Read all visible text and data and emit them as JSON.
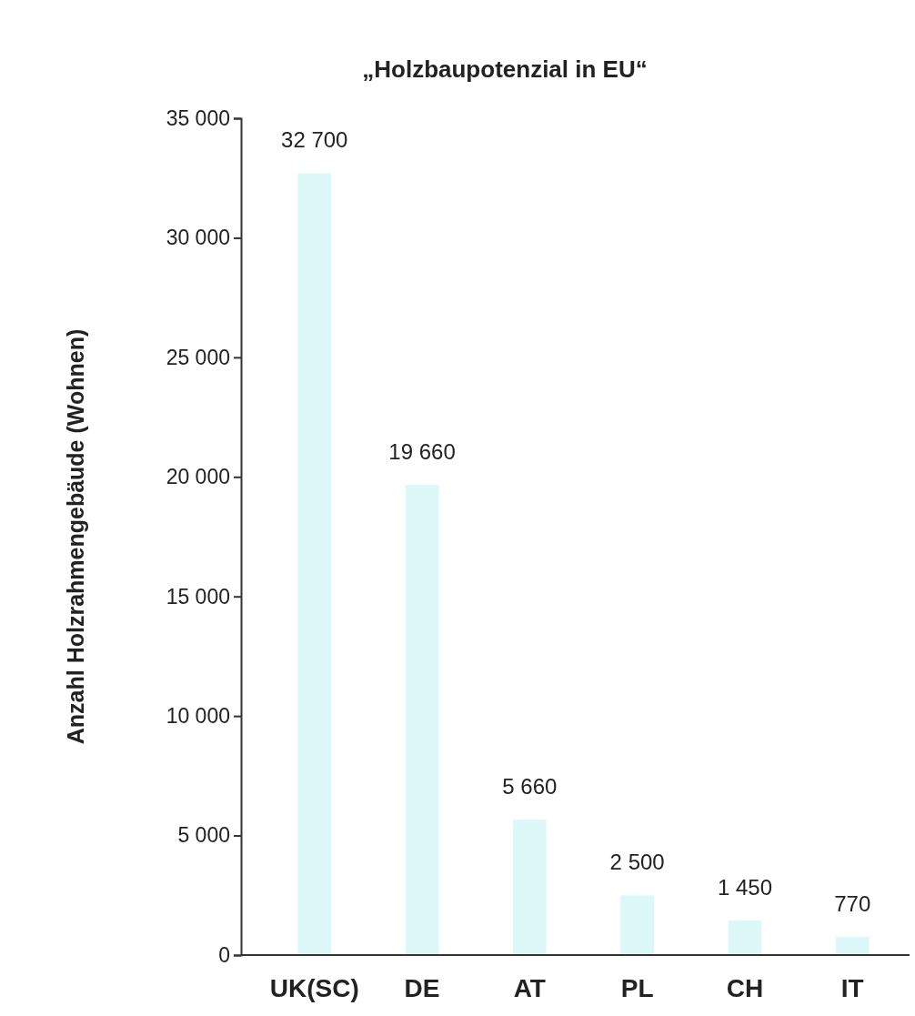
{
  "chart_data": {
    "type": "bar",
    "title": "„Holzbaupotenzial in EU“",
    "ylabel": "Anzahl Holzrahmengebäude (Wohnen)",
    "categories": [
      "UK(SC)",
      "DE",
      "AT",
      "PL",
      "CH",
      "IT"
    ],
    "values": [
      32700,
      19660,
      5660,
      2500,
      1450,
      770
    ],
    "value_labels": [
      "32 700",
      "19 660",
      "5 660",
      "2 500",
      "1 450",
      "770"
    ],
    "color": "#dcf8f8",
    "ylim": [
      0,
      35000
    ],
    "yticks": [
      {
        "value": 0,
        "label": "0"
      },
      {
        "value": 5000,
        "label": "5 000"
      },
      {
        "value": 10000,
        "label": "10 000"
      },
      {
        "value": 15000,
        "label": "15 000"
      },
      {
        "value": 20000,
        "label": "20 000"
      },
      {
        "value": 25000,
        "label": "25 000"
      },
      {
        "value": 30000,
        "label": "30 000"
      },
      {
        "value": 35000,
        "label": "35 000"
      }
    ],
    "grid": false
  }
}
